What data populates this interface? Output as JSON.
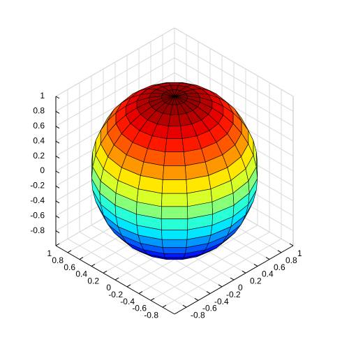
{
  "chart_data": {
    "type": "sphere",
    "radius": 1,
    "faces": 20,
    "colormap": "jet",
    "edge_color": "#000000",
    "xlim": [
      -1,
      1
    ],
    "ylim": [
      -1,
      1
    ],
    "zlim": [
      -1,
      1
    ],
    "xticks": [
      -0.8,
      -0.6,
      -0.4,
      -0.2,
      0,
      0.2,
      0.4,
      0.6,
      0.8,
      1
    ],
    "yticks": [
      -0.8,
      -0.6,
      -0.4,
      -0.2,
      0,
      0.2,
      0.4,
      0.6,
      0.8,
      1
    ],
    "zticks": [
      -0.8,
      -0.6,
      -0.4,
      -0.2,
      0,
      0.2,
      0.4,
      0.6,
      0.8,
      1
    ],
    "grid": true
  }
}
